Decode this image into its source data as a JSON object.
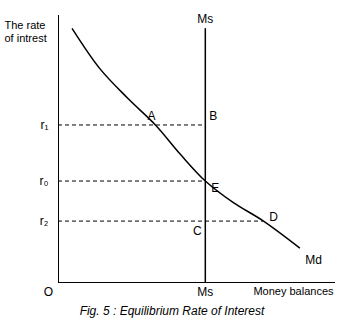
{
  "chart_data": {
    "type": "line",
    "title": "Fig. 5 : Equilibrium Rate of Interest",
    "y_label": "The rate\nof intrest",
    "x_label": "Money balances",
    "origin_label": "O",
    "xlim": [
      0,
      100
    ],
    "ylim": [
      0,
      100
    ],
    "xticks": [
      {
        "value": 53,
        "label": "Ms"
      }
    ],
    "yticks": [
      {
        "value": 59,
        "label": "r₁"
      },
      {
        "value": 38,
        "label": "r₀"
      },
      {
        "value": 23,
        "label": "r₂"
      }
    ],
    "tick_labels": true,
    "grid": false,
    "series": [
      {
        "name": "Md",
        "color": "#000000",
        "line_style": "solid",
        "x": [
          5,
          15,
          25,
          35,
          44,
          53,
          63,
          74,
          87
        ],
        "values": [
          95,
          80,
          69,
          59,
          48,
          38,
          30,
          23,
          13
        ]
      },
      {
        "name": "Ms",
        "color": "#000000",
        "line_style": "solid",
        "x": [
          53,
          53
        ],
        "values": [
          0,
          95
        ]
      }
    ],
    "points": [
      {
        "label": "A",
        "x": 35,
        "y": 59
      },
      {
        "label": "B",
        "x": 53,
        "y": 59
      },
      {
        "label": "E",
        "x": 53,
        "y": 38
      },
      {
        "label": "C",
        "x": 53,
        "y": 23
      },
      {
        "label": "D",
        "x": 74,
        "y": 23
      }
    ]
  }
}
